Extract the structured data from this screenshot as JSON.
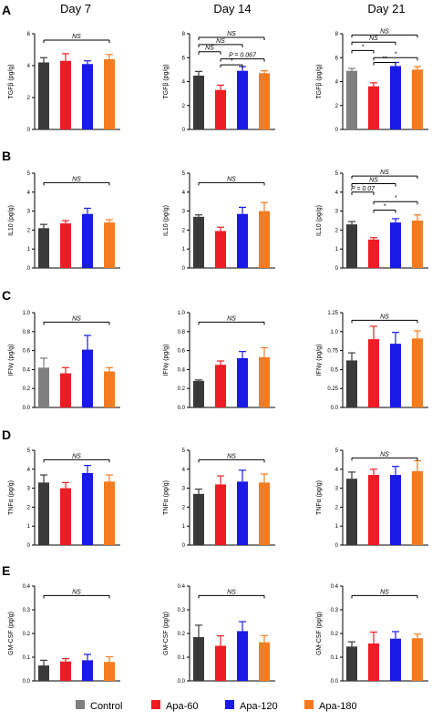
{
  "figure": {
    "column_titles": [
      "Day 7",
      "Day 14",
      "Day 21"
    ],
    "panel_letters": [
      "A",
      "B",
      "C",
      "D",
      "E"
    ],
    "legend": [
      {
        "label": "Control",
        "color": "#7f7f7f"
      },
      {
        "label": "Apa-60",
        "color": "#ee1c24"
      },
      {
        "label": "Apa-120",
        "color": "#1a1ae6"
      },
      {
        "label": "Apa-180",
        "color": "#f47b20"
      }
    ],
    "colors": {
      "control_dark": "#3a3a3a",
      "control_light": "#7f7f7f",
      "apa60": "#ee1c24",
      "apa120": "#1a1ae6",
      "apa180": "#f47b20"
    }
  },
  "chart_data": [
    {
      "type": "bar",
      "row": "A",
      "column": "Day 7",
      "ylabel": "TGFβ (pg/g)",
      "ylim": [
        0,
        6
      ],
      "yticks": [
        "0",
        "2",
        "4",
        "6"
      ],
      "categories": [
        "Control",
        "Apa-60",
        "Apa-120",
        "Apa-180"
      ],
      "values": [
        4.2,
        4.3,
        4.1,
        4.4
      ],
      "errors": [
        0.3,
        0.45,
        0.2,
        0.3
      ],
      "bar_colors": [
        "#3a3a3a",
        "#ee1c24",
        "#1a1ae6",
        "#f47b20"
      ],
      "annotations": [
        {
          "text": "NS",
          "from": 0,
          "to": 3,
          "y": 5.6
        }
      ]
    },
    {
      "type": "bar",
      "row": "A",
      "column": "Day 14",
      "ylabel": "TGFβ (pg/g)",
      "ylim": [
        0,
        8
      ],
      "yticks": [
        "0",
        "2",
        "4",
        "6",
        "8"
      ],
      "categories": [
        "Control",
        "Apa-60",
        "Apa-120",
        "Apa-180"
      ],
      "values": [
        4.5,
        3.3,
        4.9,
        4.7
      ],
      "errors": [
        0.35,
        0.4,
        0.35,
        0.2
      ],
      "bar_colors": [
        "#3a3a3a",
        "#ee1c24",
        "#1a1ae6",
        "#f47b20"
      ],
      "annotations": [
        {
          "text": "NS",
          "from": 0,
          "to": 3,
          "y": 7.7
        },
        {
          "text": "NS",
          "from": 0,
          "to": 2,
          "y": 7.1
        },
        {
          "text": "NS",
          "from": 0,
          "to": 1,
          "y": 6.5
        },
        {
          "text": "P = 0.067",
          "from": 1,
          "to": 3,
          "y": 5.9
        },
        {
          "text": "*",
          "from": 1,
          "to": 2,
          "y": 5.4
        }
      ]
    },
    {
      "type": "bar",
      "row": "A",
      "column": "Day 21",
      "ylabel": "TGFβ (pg/g)",
      "ylim": [
        0,
        8
      ],
      "yticks": [
        "0",
        "2",
        "4",
        "6",
        "8"
      ],
      "categories": [
        "Control",
        "Apa-60",
        "Apa-120",
        "Apa-180"
      ],
      "values": [
        4.9,
        3.6,
        5.3,
        5.0
      ],
      "errors": [
        0.2,
        0.3,
        0.3,
        0.25
      ],
      "bar_colors": [
        "#7f7f7f",
        "#ee1c24",
        "#1a1ae6",
        "#f47b20"
      ],
      "annotations": [
        {
          "text": "NS",
          "from": 0,
          "to": 3,
          "y": 7.9
        },
        {
          "text": "NS",
          "from": 0,
          "to": 2,
          "y": 7.3
        },
        {
          "text": "*",
          "from": 0,
          "to": 1,
          "y": 6.6
        },
        {
          "text": "*",
          "from": 1,
          "to": 3,
          "y": 6.0
        },
        {
          "text": "**",
          "from": 1,
          "to": 2,
          "y": 5.6
        }
      ]
    },
    {
      "type": "bar",
      "row": "B",
      "column": "Day 7",
      "ylabel": "IL10 (pg/g)",
      "ylim": [
        0,
        5
      ],
      "yticks": [
        "0",
        "1",
        "2",
        "3",
        "4",
        "5"
      ],
      "categories": [
        "Control",
        "Apa-60",
        "Apa-120",
        "Apa-180"
      ],
      "values": [
        2.1,
        2.35,
        2.85,
        2.4
      ],
      "errors": [
        0.2,
        0.15,
        0.3,
        0.15
      ],
      "bar_colors": [
        "#3a3a3a",
        "#ee1c24",
        "#1a1ae6",
        "#f47b20"
      ],
      "annotations": [
        {
          "text": "NS",
          "from": 0,
          "to": 3,
          "y": 4.5
        }
      ]
    },
    {
      "type": "bar",
      "row": "B",
      "column": "Day 14",
      "ylabel": "IL10 (pg/g)",
      "ylim": [
        0,
        5
      ],
      "yticks": [
        "0",
        "1",
        "2",
        "3",
        "4",
        "5"
      ],
      "categories": [
        "Control",
        "Apa-60",
        "Apa-120",
        "Apa-180"
      ],
      "values": [
        2.7,
        1.95,
        2.85,
        3.0
      ],
      "errors": [
        0.1,
        0.2,
        0.35,
        0.45
      ],
      "bar_colors": [
        "#3a3a3a",
        "#ee1c24",
        "#1a1ae6",
        "#f47b20"
      ],
      "annotations": [
        {
          "text": "NS",
          "from": 0,
          "to": 3,
          "y": 4.5
        }
      ]
    },
    {
      "type": "bar",
      "row": "B",
      "column": "Day 21",
      "ylabel": "IL10 (pg/g)",
      "ylim": [
        0,
        5
      ],
      "yticks": [
        "0",
        "1",
        "2",
        "3",
        "4",
        "5"
      ],
      "categories": [
        "Control",
        "Apa-60",
        "Apa-120",
        "Apa-180"
      ],
      "values": [
        2.3,
        1.5,
        2.4,
        2.5
      ],
      "errors": [
        0.15,
        0.1,
        0.2,
        0.3
      ],
      "bar_colors": [
        "#3a3a3a",
        "#ee1c24",
        "#1a1ae6",
        "#f47b20"
      ],
      "annotations": [
        {
          "text": "NS",
          "from": 0,
          "to": 3,
          "y": 4.85
        },
        {
          "text": "NS",
          "from": 0,
          "to": 2,
          "y": 4.45
        },
        {
          "text": "P = 0.07",
          "from": 0,
          "to": 1,
          "y": 4.0
        },
        {
          "text": "*",
          "from": 1,
          "to": 3,
          "y": 3.5
        },
        {
          "text": "*",
          "from": 1,
          "to": 2,
          "y": 3.05
        }
      ]
    },
    {
      "type": "bar",
      "row": "C",
      "column": "Day 7",
      "ylabel": "IFNγ (pg/g)",
      "ylim": [
        0,
        1.0
      ],
      "yticks": [
        "0.0",
        "0.2",
        "0.4",
        "0.6",
        "0.8",
        "1.0"
      ],
      "categories": [
        "Control",
        "Apa-60",
        "Apa-120",
        "Apa-180"
      ],
      "values": [
        0.42,
        0.36,
        0.61,
        0.38
      ],
      "errors": [
        0.1,
        0.06,
        0.15,
        0.04
      ],
      "bar_colors": [
        "#7f7f7f",
        "#ee1c24",
        "#1a1ae6",
        "#f47b20"
      ],
      "annotations": [
        {
          "text": "NS",
          "from": 0,
          "to": 3,
          "y": 0.9
        }
      ]
    },
    {
      "type": "bar",
      "row": "C",
      "column": "Day 14",
      "ylabel": "IFNγ (pg/g)",
      "ylim": [
        0,
        1.0
      ],
      "yticks": [
        "0.0",
        "0.2",
        "0.4",
        "0.6",
        "0.8",
        "1.0"
      ],
      "categories": [
        "Control",
        "Apa-60",
        "Apa-120",
        "Apa-180"
      ],
      "values": [
        0.28,
        0.45,
        0.52,
        0.53
      ],
      "errors": [
        0.01,
        0.04,
        0.07,
        0.1
      ],
      "bar_colors": [
        "#3a3a3a",
        "#ee1c24",
        "#1a1ae6",
        "#f47b20"
      ],
      "annotations": [
        {
          "text": "NS",
          "from": 0,
          "to": 3,
          "y": 0.9
        }
      ]
    },
    {
      "type": "bar",
      "row": "C",
      "column": "Day 21",
      "ylabel": "IFNγ (pg/g)",
      "ylim": [
        0,
        1.25
      ],
      "yticks": [
        "0.0",
        "0.25",
        "0.5",
        "0.75",
        "1.0",
        "1.25"
      ],
      "categories": [
        "Control",
        "Apa-60",
        "Apa-120",
        "Apa-180"
      ],
      "values": [
        0.62,
        0.9,
        0.84,
        0.91
      ],
      "errors": [
        0.1,
        0.17,
        0.15,
        0.1
      ],
      "bar_colors": [
        "#3a3a3a",
        "#ee1c24",
        "#1a1ae6",
        "#f47b20"
      ],
      "annotations": [
        {
          "text": "NS",
          "from": 0,
          "to": 3,
          "y": 1.15
        }
      ]
    },
    {
      "type": "bar",
      "row": "D",
      "column": "Day 7",
      "ylabel": "TNFα (pg/g)",
      "ylim": [
        0,
        5
      ],
      "yticks": [
        "0",
        "1",
        "2",
        "3",
        "4",
        "5"
      ],
      "categories": [
        "Control",
        "Apa-60",
        "Apa-120",
        "Apa-180"
      ],
      "values": [
        3.3,
        3.0,
        3.8,
        3.35
      ],
      "errors": [
        0.4,
        0.3,
        0.4,
        0.35
      ],
      "bar_colors": [
        "#3a3a3a",
        "#ee1c24",
        "#1a1ae6",
        "#f47b20"
      ],
      "annotations": [
        {
          "text": "NS",
          "from": 0,
          "to": 3,
          "y": 4.5
        }
      ]
    },
    {
      "type": "bar",
      "row": "D",
      "column": "Day 14",
      "ylabel": "TNFα (pg/g)",
      "ylim": [
        0,
        5
      ],
      "yticks": [
        "0",
        "1",
        "2",
        "3",
        "4",
        "5"
      ],
      "categories": [
        "Control",
        "Apa-60",
        "Apa-120",
        "Apa-180"
      ],
      "values": [
        2.7,
        3.2,
        3.35,
        3.3
      ],
      "errors": [
        0.25,
        0.45,
        0.6,
        0.45
      ],
      "bar_colors": [
        "#3a3a3a",
        "#ee1c24",
        "#1a1ae6",
        "#f47b20"
      ],
      "annotations": [
        {
          "text": "NS",
          "from": 0,
          "to": 3,
          "y": 4.5
        }
      ]
    },
    {
      "type": "bar",
      "row": "D",
      "column": "Day 21",
      "ylabel": "TNFα (pg/g)",
      "ylim": [
        0,
        5
      ],
      "yticks": [
        "0",
        "1",
        "2",
        "3",
        "4",
        "5"
      ],
      "categories": [
        "Control",
        "Apa-60",
        "Apa-120",
        "Apa-180"
      ],
      "values": [
        3.5,
        3.7,
        3.7,
        3.9
      ],
      "errors": [
        0.35,
        0.3,
        0.45,
        0.55
      ],
      "bar_colors": [
        "#3a3a3a",
        "#ee1c24",
        "#1a1ae6",
        "#f47b20"
      ],
      "annotations": [
        {
          "text": "NS",
          "from": 0,
          "to": 3,
          "y": 4.6
        }
      ]
    },
    {
      "type": "bar",
      "row": "E",
      "column": "Day 7",
      "ylabel": "GM-CSF (pg/g)",
      "ylim": [
        0,
        0.4
      ],
      "yticks": [
        "0.0",
        "0.1",
        "0.2",
        "0.3",
        "0.4"
      ],
      "categories": [
        "Control",
        "Apa-60",
        "Apa-120",
        "Apa-180"
      ],
      "values": [
        0.065,
        0.082,
        0.087,
        0.08
      ],
      "errors": [
        0.022,
        0.012,
        0.025,
        0.022
      ],
      "bar_colors": [
        "#3a3a3a",
        "#ee1c24",
        "#1a1ae6",
        "#f47b20"
      ],
      "annotations": [
        {
          "text": "NS",
          "from": 0,
          "to": 3,
          "y": 0.36
        }
      ]
    },
    {
      "type": "bar",
      "row": "E",
      "column": "Day 14",
      "ylabel": "GM-CSF (pg/g)",
      "ylim": [
        0,
        0.4
      ],
      "yticks": [
        "0.0",
        "0.1",
        "0.2",
        "0.3",
        "0.4"
      ],
      "categories": [
        "Control",
        "Apa-60",
        "Apa-120",
        "Apa-180"
      ],
      "values": [
        0.185,
        0.148,
        0.21,
        0.163
      ],
      "errors": [
        0.05,
        0.042,
        0.04,
        0.028
      ],
      "bar_colors": [
        "#3a3a3a",
        "#ee1c24",
        "#1a1ae6",
        "#f47b20"
      ],
      "annotations": [
        {
          "text": "NS",
          "from": 0,
          "to": 3,
          "y": 0.36
        }
      ]
    },
    {
      "type": "bar",
      "row": "E",
      "column": "Day 21",
      "ylabel": "GM-CSF (pg/g)",
      "ylim": [
        0,
        0.4
      ],
      "yticks": [
        "0.0",
        "0.1",
        "0.2",
        "0.3",
        "0.4"
      ],
      "categories": [
        "Control",
        "Apa-60",
        "Apa-120",
        "Apa-180"
      ],
      "values": [
        0.145,
        0.158,
        0.178,
        0.18
      ],
      "errors": [
        0.02,
        0.048,
        0.03,
        0.018
      ],
      "bar_colors": [
        "#3a3a3a",
        "#ee1c24",
        "#1a1ae6",
        "#f47b20"
      ],
      "annotations": [
        {
          "text": "NS",
          "from": 0,
          "to": 3,
          "y": 0.36
        }
      ]
    }
  ]
}
